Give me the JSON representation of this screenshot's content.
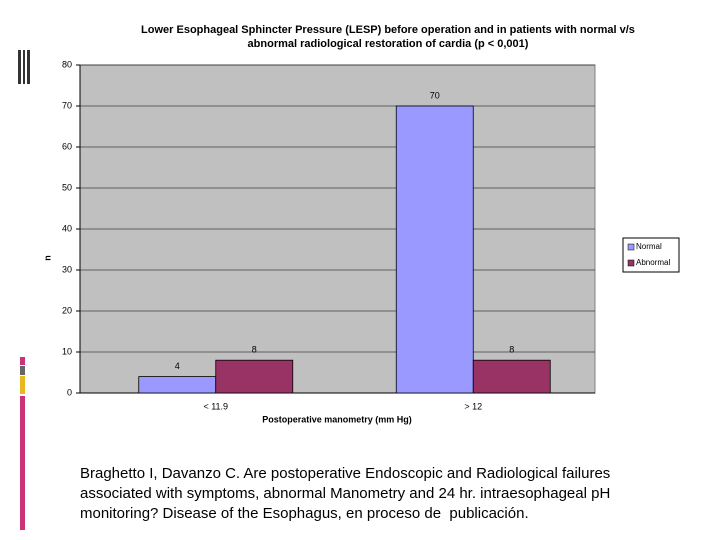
{
  "chart_data": {
    "type": "bar",
    "title": [
      "Lower Esophageal Sphincter Pressure (LESP) before operation and in patients with normal v/s",
      "abnormal radiological restoration of cardia (p < 0,001)"
    ],
    "x_label": "Postoperative manometry (mm Hg)",
    "y_label": "n",
    "categories": [
      "< 11.9",
      "> 12"
    ],
    "series": [
      {
        "name": "Normal",
        "color": "#9999ff",
        "values": [
          4,
          70
        ]
      },
      {
        "name": "Abnormal",
        "color": "#993366",
        "values": [
          8,
          8
        ]
      }
    ],
    "ylim": [
      0,
      80
    ],
    "yticks": [
      0,
      10,
      20,
      30,
      40,
      50,
      60,
      70,
      80
    ],
    "grid": true,
    "legend": "right"
  },
  "caption": [
    "Braghetto I, Davanzo C. Are postoperative Endoscopic and Radiological failures",
    "associated with symptoms, abnormal Manometry and 24 hr. intraesophageal pH",
    "monitoring? Disease of the Esophagus, en proceso de  publicación."
  ]
}
